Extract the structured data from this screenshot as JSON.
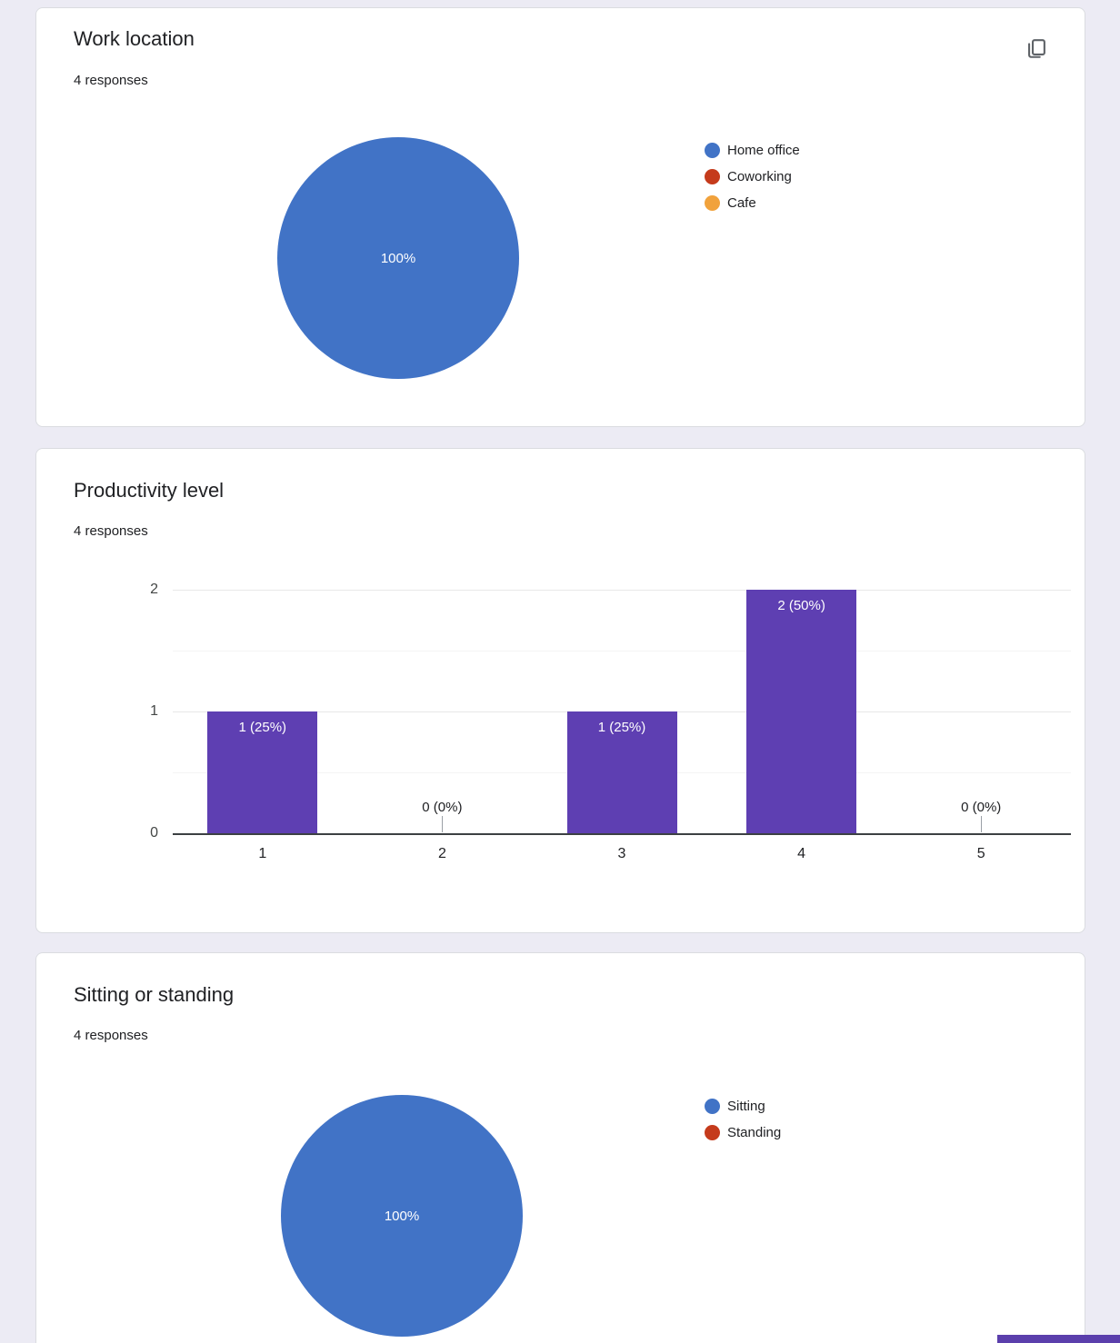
{
  "page": {
    "background_color": "#ECEBF4",
    "card_background": "#FFFFFF",
    "card_border_color": "#DADCE0",
    "cutoff_element_color": "#5B3FAC"
  },
  "cards": [
    {
      "title": "Work location",
      "responses_label": "4 responses",
      "has_copy_button": true
    },
    {
      "title": "Productivity level",
      "responses_label": "4 responses",
      "has_copy_button": false
    },
    {
      "title": "Sitting or standing",
      "responses_label": "4 responses",
      "has_copy_button": false
    }
  ],
  "icons": {
    "copy_icon_color": "#5F6368"
  },
  "chart_data": [
    {
      "type": "pie",
      "title": "Work location",
      "subtitle": "4 responses",
      "labels": [
        "Home office",
        "Coworking",
        "Cafe"
      ],
      "values": [
        4,
        0,
        0
      ],
      "percentages": [
        100,
        0,
        0
      ],
      "slice_label": "100%",
      "colors": [
        "#4173C6",
        "#C53B1C",
        "#F1A23C"
      ],
      "legend_position": "right"
    },
    {
      "type": "bar",
      "title": "Productivity level",
      "subtitle": "4 responses",
      "categories": [
        "1",
        "2",
        "3",
        "4",
        "5"
      ],
      "values": [
        1,
        0,
        1,
        2,
        0
      ],
      "bar_labels": [
        "1 (25%)",
        "0 (0%)",
        "1 (25%)",
        "2 (50%)",
        "0 (0%)"
      ],
      "ylim": [
        0,
        2
      ],
      "yticks": [
        0,
        1,
        2
      ],
      "bar_color": "#5E3FB2",
      "grid": true,
      "legend_position": "none"
    },
    {
      "type": "pie",
      "title": "Sitting or standing",
      "subtitle": "4 responses",
      "labels": [
        "Sitting",
        "Standing"
      ],
      "values": [
        4,
        0
      ],
      "percentages": [
        100,
        0
      ],
      "slice_label": "100%",
      "colors": [
        "#4173C6",
        "#C53B1C"
      ],
      "legend_position": "right"
    }
  ]
}
